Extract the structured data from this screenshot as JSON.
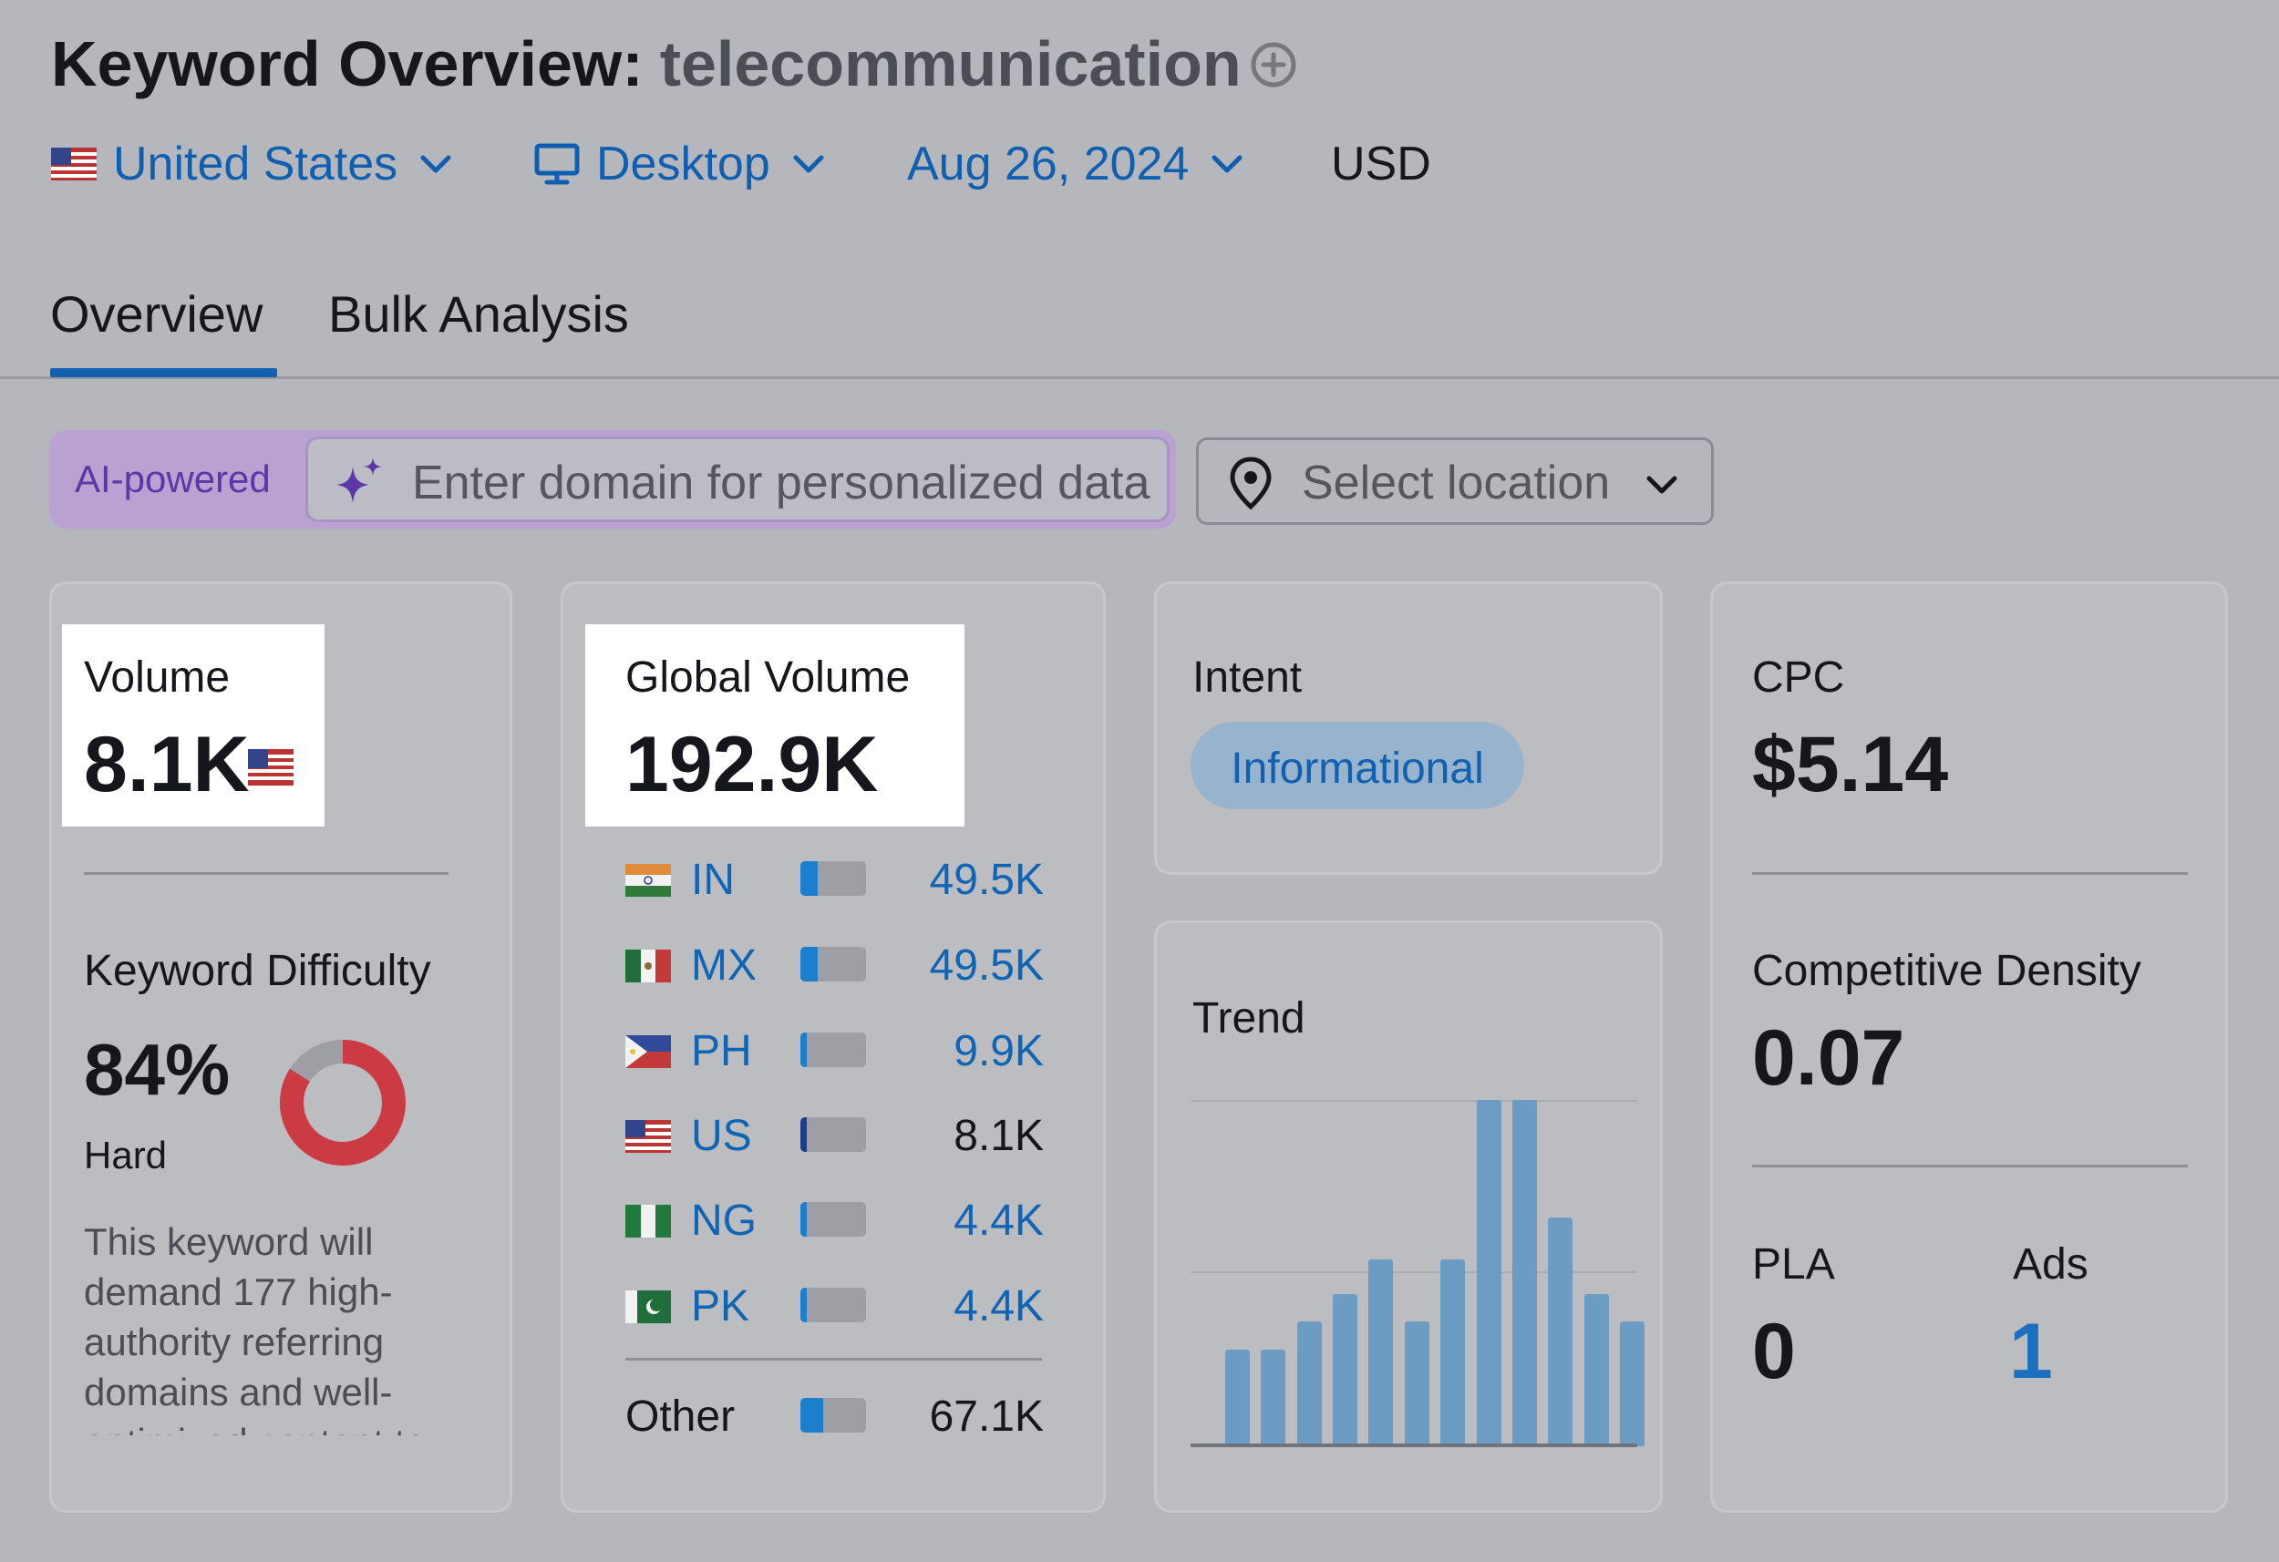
{
  "header": {
    "title_label": "Keyword Overview:",
    "keyword": "telecommunication",
    "add_icon": "plus-circle-icon"
  },
  "filters": {
    "country": "United States",
    "device": "Desktop",
    "date": "Aug 26, 2024",
    "currency": "USD"
  },
  "tabs": [
    {
      "label": "Overview",
      "active": true
    },
    {
      "label": "Bulk Analysis",
      "active": false
    }
  ],
  "ai_search": {
    "badge": "AI-powered",
    "placeholder": "Enter domain for personalized data",
    "location_placeholder": "Select location"
  },
  "volume": {
    "label": "Volume",
    "value": "8.1K"
  },
  "keyword_difficulty": {
    "label": "Keyword Difficulty",
    "value": "84%",
    "percent": 84,
    "level": "Hard",
    "description": "This keyword will demand 177 high-authority referring domains and well-optimized content to"
  },
  "global_volume": {
    "label": "Global Volume",
    "value": "192.9K",
    "countries": [
      {
        "code": "IN",
        "value": "49.5K",
        "share": 0.26
      },
      {
        "code": "MX",
        "value": "49.5K",
        "share": 0.26
      },
      {
        "code": "PH",
        "value": "9.9K",
        "share": 0.1
      },
      {
        "code": "US",
        "value": "8.1K",
        "share": 0.1
      },
      {
        "code": "NG",
        "value": "4.4K",
        "share": 0.1
      },
      {
        "code": "PK",
        "value": "4.4K",
        "share": 0.1
      }
    ],
    "other": {
      "label": "Other",
      "value": "67.1K",
      "share": 0.35
    }
  },
  "intent": {
    "label": "Intent",
    "badge": "Informational"
  },
  "trend": {
    "label": "Trend",
    "values": [
      0.28,
      0.28,
      0.36,
      0.44,
      0.54,
      0.36,
      0.54,
      1.0,
      1.0,
      0.66,
      0.44,
      0.36
    ]
  },
  "cpc": {
    "label": "CPC",
    "value": "$5.14"
  },
  "competitive_density": {
    "label": "Competitive Density",
    "value": "0.07"
  },
  "pla": {
    "label": "PLA",
    "value": "0"
  },
  "ads": {
    "label": "Ads",
    "value": "1"
  },
  "colors": {
    "accent_blue": "#1260b0",
    "kd_red": "#cc3a44",
    "trend_bar": "#6c9bc4",
    "ai_purple": "#5b37a7"
  }
}
